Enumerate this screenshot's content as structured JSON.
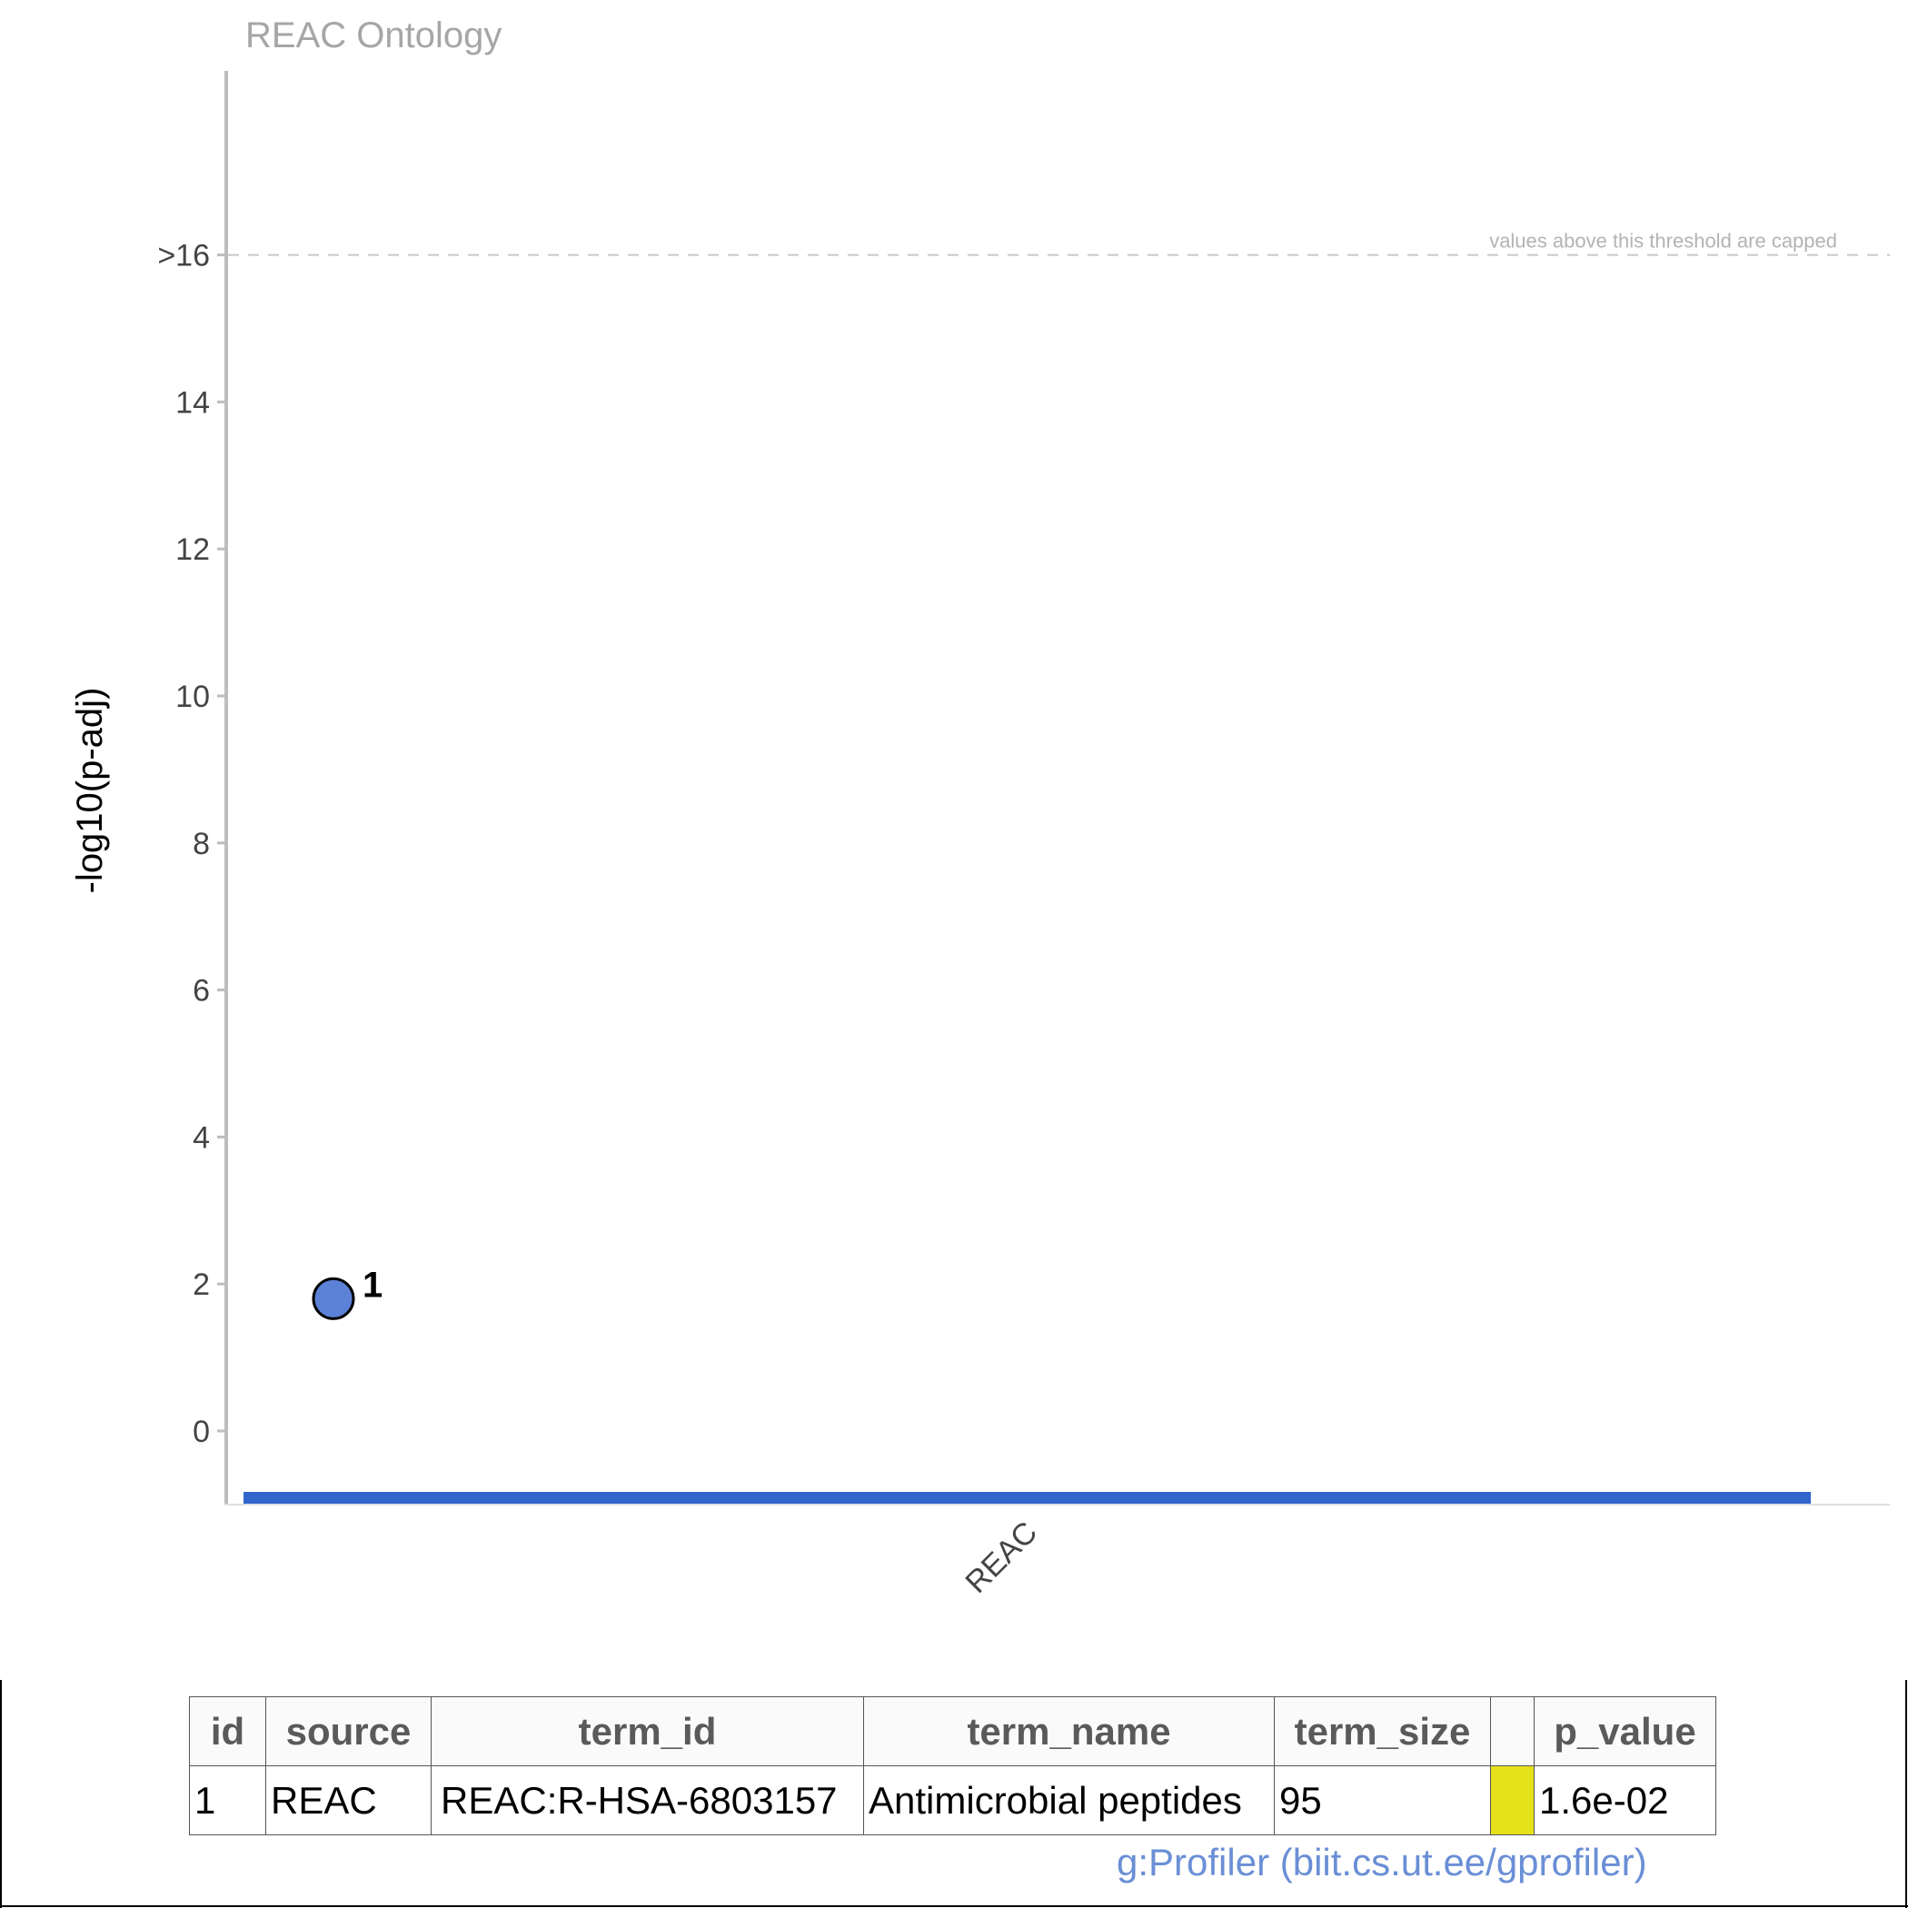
{
  "chart_data": {
    "type": "scatter",
    "title": "REAC Ontology",
    "ylabel": "-log10(p-adj)",
    "ylim": [
      -0.9,
      16
    ],
    "yticks": [
      0,
      2,
      4,
      6,
      8,
      10,
      12,
      14
    ],
    "ytick_labels": [
      "0",
      "2",
      "4",
      "6",
      "8",
      "10",
      "12",
      "14"
    ],
    "cap_tick_label": ">16",
    "cap_value": 16,
    "threshold_label": "values above this threshold are capped",
    "grid": false,
    "categories": [
      "REAC"
    ],
    "source_bar_color": "#3366cc",
    "points": [
      {
        "label": "1",
        "category": "REAC",
        "y": 1.8,
        "color": "#5b82d6"
      }
    ]
  },
  "table": {
    "headers": [
      "id",
      "source",
      "term_id",
      "term_name",
      "term_size",
      "",
      "p_value"
    ],
    "rows": [
      {
        "id": "1",
        "source": "REAC",
        "term_id": "REAC:R-HSA-6803157",
        "term_name": "Antimicrobial peptides",
        "term_size": "95",
        "highlight_color": "#e6e21a",
        "p_value": "1.6e-02"
      }
    ]
  },
  "footer": {
    "credit": "g:Profiler (biit.cs.ut.ee/gprofiler)"
  }
}
